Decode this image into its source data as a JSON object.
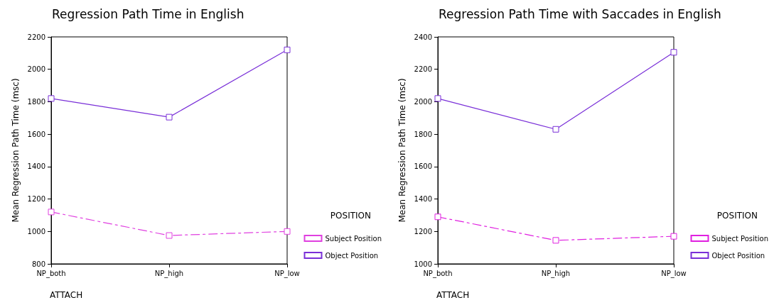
{
  "chart_data": [
    {
      "type": "line",
      "title": "Regression Path Time in English",
      "xlabel": "ATTACH",
      "ylabel": "Mean Regression Path Time (msc)",
      "legend_title": "POSITION",
      "categories": [
        "NP_both",
        "NP_high",
        "NP_low"
      ],
      "series": [
        {
          "name": "Subject Position",
          "color": "#e040e0",
          "line_style": "dashed",
          "values": [
            1120,
            975,
            1000
          ]
        },
        {
          "name": "Object Position",
          "color": "#7a30d8",
          "line_style": "solid",
          "values": [
            1820,
            1705,
            2120
          ]
        }
      ],
      "ylim": [
        800,
        2200
      ],
      "yticks": [
        800,
        1000,
        1200,
        1400,
        1600,
        1800,
        2000,
        2200
      ],
      "grid": false,
      "legend": "bottom right",
      "marker": "square"
    },
    {
      "type": "line",
      "title": "Regression Path Time with Saccades in English",
      "xlabel": "ATTACH",
      "ylabel": "Mean Regression Path Time (msc)",
      "legend_title": "POSITION",
      "categories": [
        "NP_both",
        "NP_high",
        "NP_low"
      ],
      "series": [
        {
          "name": "Subject Position",
          "color": "#e020e0",
          "line_style": "dashed",
          "values": [
            1290,
            1145,
            1170
          ]
        },
        {
          "name": "Object Position",
          "color": "#7a30d8",
          "line_style": "solid",
          "values": [
            2020,
            1830,
            2305
          ]
        }
      ],
      "ylim": [
        1000,
        2400
      ],
      "yticks": [
        1000,
        1200,
        1400,
        1600,
        1800,
        2000,
        2200,
        2400
      ],
      "grid": false,
      "legend": "bottom right",
      "marker": "square"
    }
  ]
}
